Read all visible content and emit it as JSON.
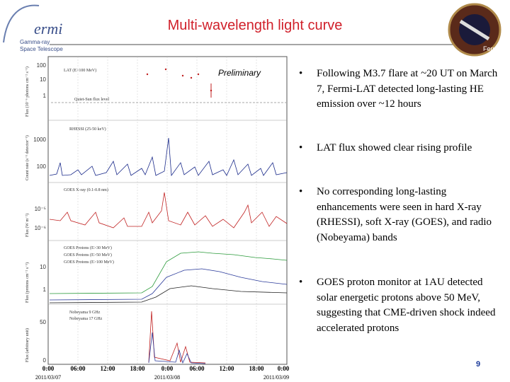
{
  "header": {
    "title": "Multi-wavelength light curve",
    "logo": {
      "name": "ermi",
      "subtitle_1": "Gamma-ray",
      "subtitle_2": "Space Telescope"
    },
    "patch": "Fermi"
  },
  "figure": {
    "note": "Preliminary",
    "panels": [
      {
        "legend": [
          "LAT (E>100 MeV)"
        ],
        "annotation": "Quiet-Sun flux level",
        "ylabel": "Flux (10⁻⁶ photons cm⁻² s⁻¹)",
        "yticks": [
          "100",
          "10",
          "1"
        ]
      },
      {
        "legend": [
          "RHESSI (25-50 keV)"
        ],
        "ylabel": "Count rate (s⁻¹ detector⁻¹)",
        "yticks": [
          "1000",
          "100"
        ]
      },
      {
        "legend": [
          "GOES X-ray (0.1-0.8 nm)"
        ],
        "ylabel": "Flux (W m⁻²)",
        "yticks": [
          "10⁻⁵",
          "10⁻⁶"
        ]
      },
      {
        "legend": [
          "GOES Protons (E>30 MeV)",
          "GOES Protons (E>50 MeV)",
          "GOES Protons (E>100 MeV)"
        ],
        "ylabel": "Flux (protons cm⁻² s⁻¹)",
        "yticks": [
          "10",
          "1"
        ]
      },
      {
        "legend": [
          "Nobeyama 9 GHz",
          "Nobeyama 17 GHz"
        ],
        "ylabel": "Flux (arbitrary unit)",
        "yticks": [
          "50",
          "0"
        ]
      }
    ],
    "xticks": [
      "0:00",
      "06:00",
      "12:00",
      "18:00",
      "0:00",
      "06:00",
      "12:00",
      "18:00",
      "0:00"
    ],
    "dates": [
      "2011/03/07",
      "2011/03/08",
      "2011/03/09"
    ]
  },
  "bullets": [
    "Following M3.7 flare at ~20 UT on March 7, Fermi-LAT detected long-lasting HE emission over ~12 hours",
    "LAT flux showed clear rising profile",
    "No corresponding long-lasting enhancements were seen in hard X-ray (RHESSI), soft X-ray (GOES), and radio (Nobeyama) bands",
    "GOES proton monitor at 1AU detected solar energetic protons above 50 MeV, suggesting that CME-driven shock indeed accelerated protons"
  ],
  "page_number": "9"
}
